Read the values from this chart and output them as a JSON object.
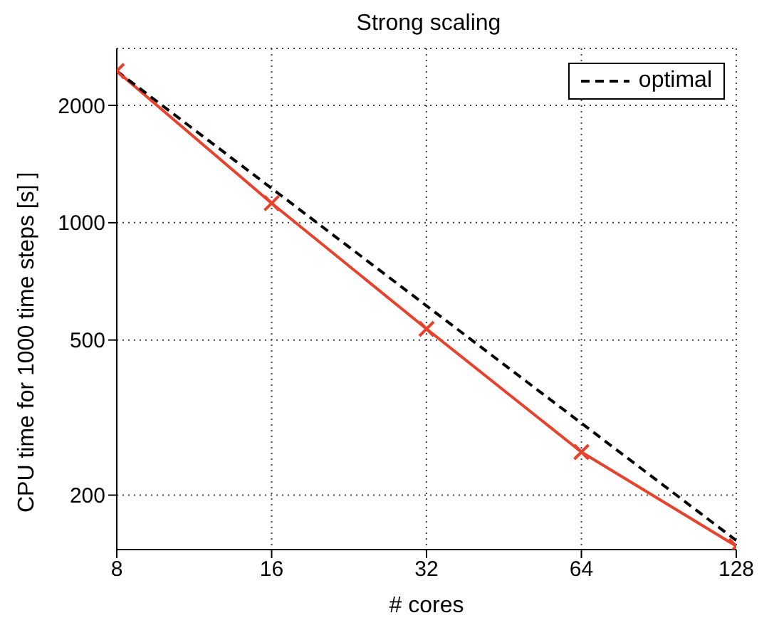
{
  "chart_data": {
    "type": "line",
    "title": "Strong scaling",
    "xlabel": "# cores",
    "ylabel": "CPU time for 1000 time steps [s] ]",
    "log": "xy",
    "grid": true,
    "legend": "top right",
    "x": [
      8,
      16,
      32,
      64,
      128
    ],
    "xlim": [
      8,
      128
    ],
    "xticks": [
      8,
      16,
      32,
      64,
      128
    ],
    "ylim": [
      145,
      2800
    ],
    "yticks": [
      200,
      500,
      1000,
      2000
    ],
    "series": [
      {
        "color": "#e8412c",
        "values": [
          2450,
          1122,
          534,
          258,
          148
        ],
        "marker": "cross",
        "line_style": "solid"
      },
      {
        "name": "optimal",
        "color": "#000000",
        "values": [
          2450,
          1225,
          612,
          306,
          153
        ],
        "marker": "none",
        "line_style": "dashed"
      }
    ]
  }
}
